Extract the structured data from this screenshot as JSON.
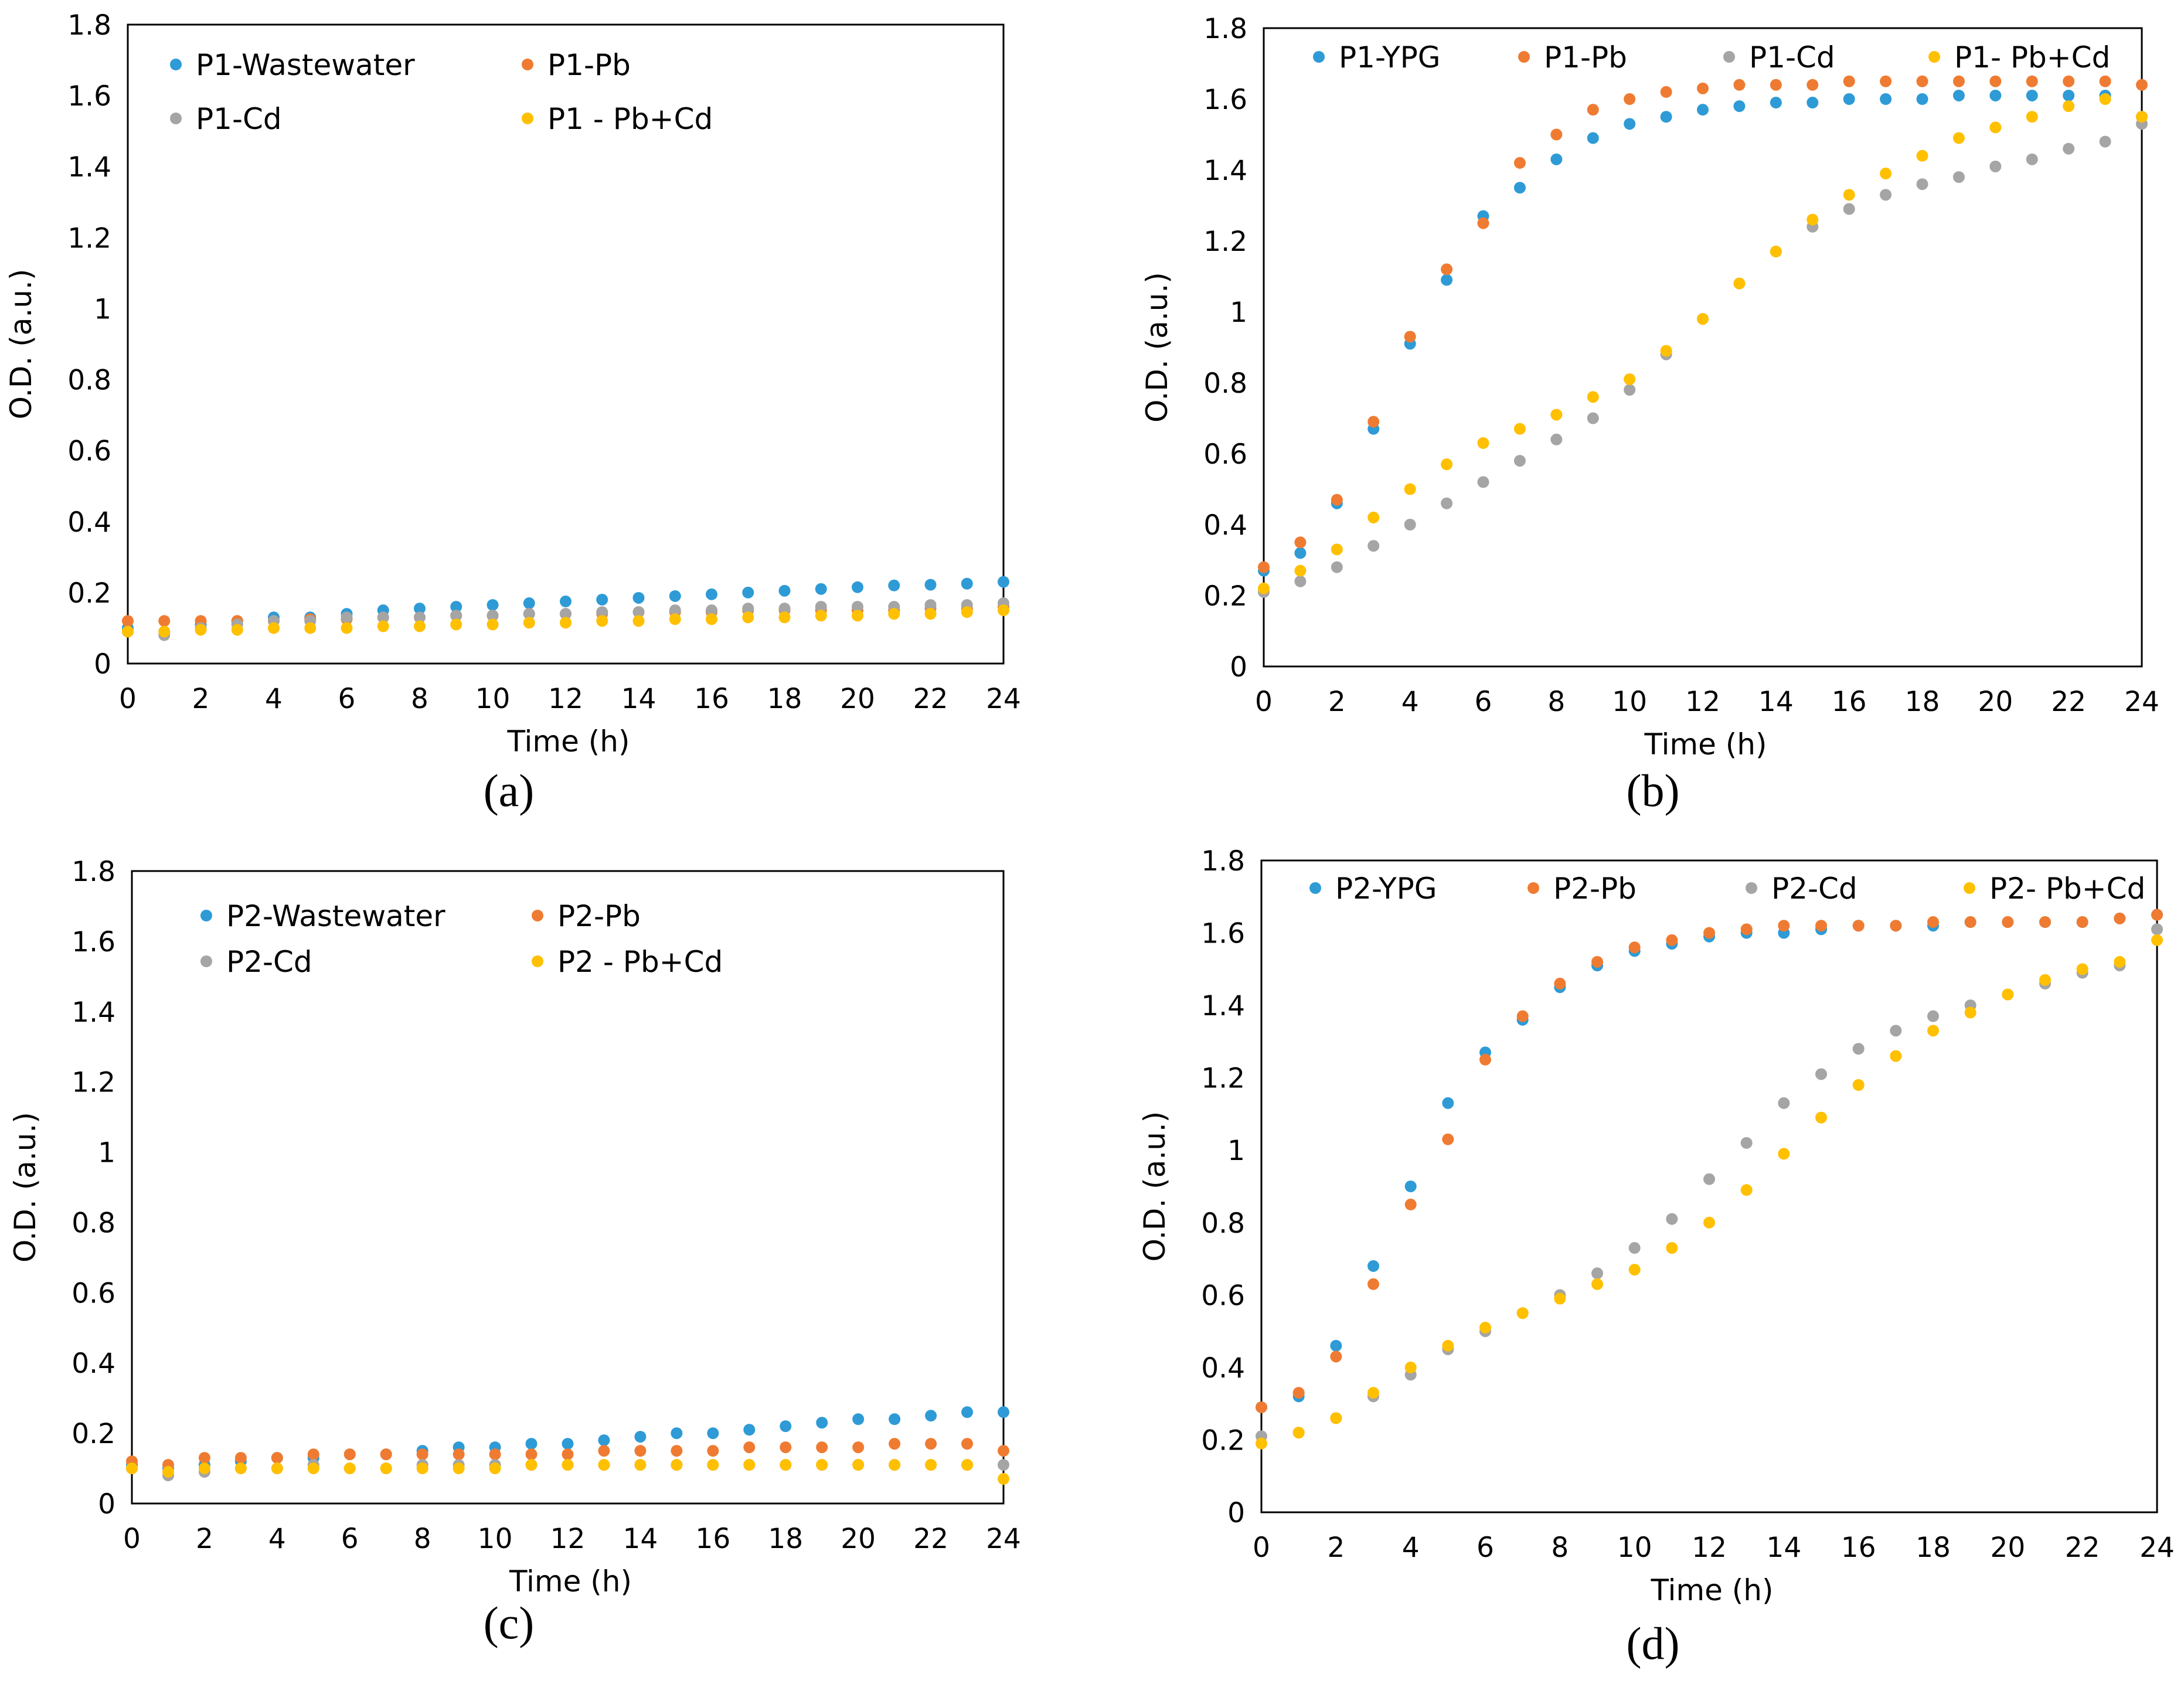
{
  "series_colors": {
    "blue": "#2e9bd6",
    "orange": "#ef7b32",
    "gray": "#a5a5a5",
    "yellow": "#ffc000"
  },
  "chart_data": [
    {
      "id": "a",
      "type": "scatter",
      "panel_label": "(a)",
      "xlabel": "Time (h)",
      "ylabel": "O.D. (a.u.)",
      "xlim": [
        0,
        24
      ],
      "ylim": [
        0,
        1.8
      ],
      "x_ticks": [
        "0",
        "2",
        "4",
        "6",
        "8",
        "10",
        "12",
        "14",
        "16",
        "18",
        "20",
        "22",
        "24"
      ],
      "y_ticks": [
        "0",
        "0.2",
        "0.4",
        "0.6",
        "0.8",
        "1",
        "1.2",
        "1.4",
        "1.6",
        "1.8"
      ],
      "legend_columns": 2,
      "x": [
        0,
        1,
        2,
        3,
        4,
        5,
        6,
        7,
        8,
        9,
        10,
        11,
        12,
        13,
        14,
        15,
        16,
        17,
        18,
        19,
        20,
        21,
        22,
        23,
        24
      ],
      "series": [
        {
          "name": "P1-Wastewater",
          "color": "#2e9bd6",
          "values": [
            0.1,
            0.09,
            0.11,
            0.12,
            0.13,
            0.13,
            0.14,
            0.15,
            0.155,
            0.16,
            0.165,
            0.17,
            0.175,
            0.18,
            0.185,
            0.19,
            0.195,
            0.2,
            0.205,
            0.21,
            0.215,
            0.22,
            0.222,
            0.225,
            0.23
          ]
        },
        {
          "name": "P1-Pb",
          "color": "#ef7b32",
          "values": [
            0.12,
            0.12,
            0.12,
            0.12,
            0.12,
            0.125,
            0.125,
            0.13,
            0.13,
            0.135,
            0.135,
            0.14,
            0.14,
            0.14,
            0.145,
            0.145,
            0.145,
            0.15,
            0.15,
            0.15,
            0.15,
            0.15,
            0.155,
            0.155,
            0.16
          ]
        },
        {
          "name": "P1-Cd",
          "color": "#a5a5a5",
          "values": [
            0.09,
            0.08,
            0.1,
            0.11,
            0.12,
            0.12,
            0.13,
            0.13,
            0.13,
            0.135,
            0.135,
            0.14,
            0.14,
            0.145,
            0.145,
            0.15,
            0.15,
            0.155,
            0.155,
            0.16,
            0.16,
            0.16,
            0.165,
            0.165,
            0.17
          ]
        },
        {
          "name": "P1 - Pb+Cd",
          "color": "#ffc000",
          "values": [
            0.09,
            0.09,
            0.095,
            0.095,
            0.1,
            0.1,
            0.1,
            0.105,
            0.105,
            0.11,
            0.11,
            0.115,
            0.115,
            0.12,
            0.12,
            0.125,
            0.125,
            0.13,
            0.13,
            0.135,
            0.135,
            0.14,
            0.14,
            0.145,
            0.15
          ]
        }
      ]
    },
    {
      "id": "b",
      "type": "scatter",
      "panel_label": "(b)",
      "xlabel": "Time (h)",
      "ylabel": "O.D. (a.u.)",
      "xlim": [
        0,
        24
      ],
      "ylim": [
        0,
        1.8
      ],
      "x_ticks": [
        "0",
        "2",
        "4",
        "6",
        "8",
        "10",
        "12",
        "14",
        "16",
        "18",
        "20",
        "22",
        "24"
      ],
      "y_ticks": [
        "0",
        "0.2",
        "0.4",
        "0.6",
        "0.8",
        "1",
        "1.2",
        "1.4",
        "1.6",
        "1.8"
      ],
      "legend_columns": 4,
      "x": [
        0,
        1,
        2,
        3,
        4,
        5,
        6,
        7,
        8,
        9,
        10,
        11,
        12,
        13,
        14,
        15,
        16,
        17,
        18,
        19,
        20,
        21,
        22,
        23,
        24
      ],
      "series": [
        {
          "name": "P1-YPG",
          "color": "#2e9bd6",
          "values": [
            0.27,
            0.32,
            0.46,
            0.67,
            0.91,
            1.09,
            1.27,
            1.35,
            1.43,
            1.49,
            1.53,
            1.55,
            1.57,
            1.58,
            1.59,
            1.59,
            1.6,
            1.6,
            1.6,
            1.61,
            1.61,
            1.61,
            1.61,
            1.61,
            1.55
          ]
        },
        {
          "name": "P1-Pb",
          "color": "#ef7b32",
          "values": [
            0.28,
            0.35,
            0.47,
            0.69,
            0.93,
            1.12,
            1.25,
            1.42,
            1.5,
            1.57,
            1.6,
            1.62,
            1.63,
            1.64,
            1.64,
            1.64,
            1.65,
            1.65,
            1.65,
            1.65,
            1.65,
            1.65,
            1.65,
            1.65,
            1.64
          ]
        },
        {
          "name": "P1-Cd",
          "color": "#a5a5a5",
          "values": [
            0.21,
            0.24,
            0.28,
            0.34,
            0.4,
            0.46,
            0.52,
            0.58,
            0.64,
            0.7,
            0.78,
            0.88,
            0.98,
            1.08,
            1.17,
            1.24,
            1.29,
            1.33,
            1.36,
            1.38,
            1.41,
            1.43,
            1.46,
            1.48,
            1.53
          ]
        },
        {
          "name": "P1- Pb+Cd",
          "color": "#ffc000",
          "values": [
            0.22,
            0.27,
            0.33,
            0.42,
            0.5,
            0.57,
            0.63,
            0.67,
            0.71,
            0.76,
            0.81,
            0.89,
            0.98,
            1.08,
            1.17,
            1.26,
            1.33,
            1.39,
            1.44,
            1.49,
            1.52,
            1.55,
            1.58,
            1.6,
            1.55
          ]
        }
      ]
    },
    {
      "id": "c",
      "type": "scatter",
      "panel_label": "(c)",
      "xlabel": "Time (h)",
      "ylabel": "O.D. (a.u.)",
      "xlim": [
        0,
        24
      ],
      "ylim": [
        0,
        1.8
      ],
      "x_ticks": [
        "0",
        "2",
        "4",
        "6",
        "8",
        "10",
        "12",
        "14",
        "16",
        "18",
        "20",
        "22",
        "24"
      ],
      "y_ticks": [
        "0",
        "0.2",
        "0.4",
        "0.6",
        "0.8",
        "1",
        "1.2",
        "1.4",
        "1.6",
        "1.8"
      ],
      "legend_columns": 2,
      "x": [
        0,
        1,
        2,
        3,
        4,
        5,
        6,
        7,
        8,
        9,
        10,
        11,
        12,
        13,
        14,
        15,
        16,
        17,
        18,
        19,
        20,
        21,
        22,
        23,
        24
      ],
      "series": [
        {
          "name": "P2-Wastewater",
          "color": "#2e9bd6",
          "values": [
            0.11,
            0.1,
            0.11,
            0.12,
            0.13,
            0.13,
            0.14,
            0.14,
            0.15,
            0.16,
            0.16,
            0.17,
            0.17,
            0.18,
            0.19,
            0.2,
            0.2,
            0.21,
            0.22,
            0.23,
            0.24,
            0.24,
            0.25,
            0.26,
            0.26
          ]
        },
        {
          "name": "P2-Pb",
          "color": "#ef7b32",
          "values": [
            0.12,
            0.11,
            0.13,
            0.13,
            0.13,
            0.14,
            0.14,
            0.14,
            0.14,
            0.14,
            0.14,
            0.14,
            0.14,
            0.15,
            0.15,
            0.15,
            0.15,
            0.16,
            0.16,
            0.16,
            0.16,
            0.17,
            0.17,
            0.17,
            0.15
          ]
        },
        {
          "name": "P2-Cd",
          "color": "#a5a5a5",
          "values": [
            0.1,
            0.08,
            0.09,
            0.1,
            0.1,
            0.11,
            0.1,
            0.1,
            0.11,
            0.11,
            0.11,
            0.11,
            0.11,
            0.11,
            0.11,
            0.11,
            0.11,
            0.11,
            0.11,
            0.11,
            0.11,
            0.11,
            0.11,
            0.11,
            0.11
          ]
        },
        {
          "name": "P2 - Pb+Cd",
          "color": "#ffc000",
          "values": [
            0.1,
            0.09,
            0.1,
            0.1,
            0.1,
            0.1,
            0.1,
            0.1,
            0.1,
            0.1,
            0.1,
            0.11,
            0.11,
            0.11,
            0.11,
            0.11,
            0.11,
            0.11,
            0.11,
            0.11,
            0.11,
            0.11,
            0.11,
            0.11,
            0.07
          ]
        }
      ]
    },
    {
      "id": "d",
      "type": "scatter",
      "panel_label": "(d)",
      "xlabel": "Time (h)",
      "ylabel": "O.D. (a.u.)",
      "xlim": [
        0,
        24
      ],
      "ylim": [
        0,
        1.8
      ],
      "x_ticks": [
        "0",
        "2",
        "4",
        "6",
        "8",
        "10",
        "12",
        "14",
        "16",
        "18",
        "20",
        "22",
        "24"
      ],
      "y_ticks": [
        "0",
        "0.2",
        "0.4",
        "0.6",
        "0.8",
        "1",
        "1.2",
        "1.4",
        "1.6",
        "1.8"
      ],
      "legend_columns": 4,
      "x": [
        0,
        1,
        2,
        3,
        4,
        5,
        6,
        7,
        8,
        9,
        10,
        11,
        12,
        13,
        14,
        15,
        16,
        17,
        18,
        19,
        20,
        21,
        22,
        23,
        24
      ],
      "series": [
        {
          "name": "P2-YPG",
          "color": "#2e9bd6",
          "values": [
            0.29,
            0.32,
            0.46,
            0.68,
            0.9,
            1.13,
            1.27,
            1.36,
            1.45,
            1.51,
            1.55,
            1.57,
            1.59,
            1.6,
            1.6,
            1.61,
            1.62,
            1.62,
            1.62,
            1.63,
            1.63,
            1.63,
            1.63,
            1.64,
            1.65
          ]
        },
        {
          "name": "P2-Pb",
          "color": "#ef7b32",
          "values": [
            0.29,
            0.33,
            0.43,
            0.63,
            0.85,
            1.03,
            1.25,
            1.37,
            1.46,
            1.52,
            1.56,
            1.58,
            1.6,
            1.61,
            1.62,
            1.62,
            1.62,
            1.62,
            1.63,
            1.63,
            1.63,
            1.63,
            1.63,
            1.64,
            1.65
          ]
        },
        {
          "name": "P2-Cd",
          "color": "#a5a5a5",
          "values": [
            0.21,
            0.22,
            0.26,
            0.32,
            0.38,
            0.45,
            0.5,
            0.55,
            0.6,
            0.66,
            0.73,
            0.81,
            0.92,
            1.02,
            1.13,
            1.21,
            1.28,
            1.33,
            1.37,
            1.4,
            1.43,
            1.46,
            1.49,
            1.51,
            1.61
          ]
        },
        {
          "name": "P2- Pb+Cd",
          "color": "#ffc000",
          "values": [
            0.19,
            0.22,
            0.26,
            0.33,
            0.4,
            0.46,
            0.51,
            0.55,
            0.59,
            0.63,
            0.67,
            0.73,
            0.8,
            0.89,
            0.99,
            1.09,
            1.18,
            1.26,
            1.33,
            1.38,
            1.43,
            1.47,
            1.5,
            1.52,
            1.58
          ]
        }
      ]
    }
  ]
}
